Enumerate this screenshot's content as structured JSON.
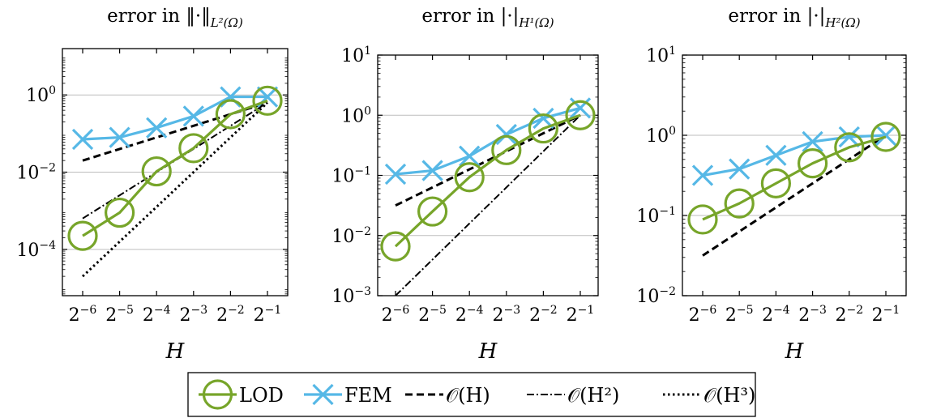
{
  "colors": {
    "lod": "#77a52a",
    "fem": "#56b8e6",
    "reference": "#000000",
    "grid": "#bdbdbd"
  },
  "legend": {
    "entries": [
      {
        "key": "lod",
        "label": "LOD",
        "style": "circle-line"
      },
      {
        "key": "fem",
        "label": "FEM",
        "style": "x-line"
      },
      {
        "key": "oh",
        "label": "𝒪(H)",
        "style": "dashed"
      },
      {
        "key": "oh2",
        "label": "𝒪(H²)",
        "style": "dashdot"
      },
      {
        "key": "oh3",
        "label": "𝒪(H³)",
        "style": "dotted"
      }
    ]
  },
  "chart_data": [
    {
      "type": "line",
      "title": "error in ‖·‖L²(Ω)",
      "xlabel": "H",
      "ylabel": "",
      "xscale": "log2",
      "yscale": "log10",
      "x": [
        -6,
        -5,
        -4,
        -3,
        -2,
        -1
      ],
      "x_tick_labels": [
        "2⁻⁶",
        "2⁻⁵",
        "2⁻⁴",
        "2⁻³",
        "2⁻²",
        "2⁻¹"
      ],
      "y_tick_labels": [
        "10⁰",
        "10⁻²",
        "10⁻⁴"
      ],
      "ylim_log10": [
        -5.2,
        1.2
      ],
      "y_ticks_log10": [
        0,
        -2,
        -4
      ],
      "grid": true,
      "series": [
        {
          "name": "LOD",
          "marker": "circle",
          "values_log10": [
            -3.65,
            -3.05,
            -1.98,
            -1.38,
            -0.5,
            -0.15
          ]
        },
        {
          "name": "FEM",
          "marker": "x",
          "values_log10": [
            -1.15,
            -1.1,
            -0.85,
            -0.55,
            -0.05,
            -0.05
          ]
        },
        {
          "name": "O(H)",
          "linestyle": "dashed",
          "values_log10": [
            -1.7,
            -1.4,
            -1.1,
            -0.8,
            -0.5,
            -0.2
          ]
        },
        {
          "name": "O(H^2)",
          "linestyle": "dashdot",
          "values_log10": [
            -3.2,
            -2.6,
            -2.0,
            -1.4,
            -0.8,
            -0.2
          ]
        },
        {
          "name": "O(H^3)",
          "linestyle": "dotted",
          "values_log10": [
            -4.7,
            -3.8,
            -2.9,
            -2.0,
            -1.1,
            -0.2
          ]
        }
      ]
    },
    {
      "type": "line",
      "title": "error in |·|H¹(Ω)",
      "xlabel": "H",
      "ylabel": "",
      "xscale": "log2",
      "yscale": "log10",
      "x": [
        -6,
        -5,
        -4,
        -3,
        -2,
        -1
      ],
      "x_tick_labels": [
        "2⁻⁶",
        "2⁻⁵",
        "2⁻⁴",
        "2⁻³",
        "2⁻²",
        "2⁻¹"
      ],
      "y_tick_labels": [
        "10¹",
        "10⁰",
        "10⁻¹",
        "10⁻²",
        "10⁻³"
      ],
      "ylim_log10": [
        -3,
        1
      ],
      "y_ticks_log10": [
        1,
        0,
        -1,
        -2,
        -3
      ],
      "grid": true,
      "series": [
        {
          "name": "LOD",
          "marker": "circle",
          "values_log10": [
            -2.18,
            -1.6,
            -1.03,
            -0.58,
            -0.22,
            0.0
          ]
        },
        {
          "name": "FEM",
          "marker": "x",
          "values_log10": [
            -0.98,
            -0.92,
            -0.68,
            -0.32,
            -0.05,
            0.12
          ]
        },
        {
          "name": "O(H)",
          "linestyle": "dashed",
          "values_log10": [
            -1.5,
            -1.2,
            -0.9,
            -0.6,
            -0.3,
            0.0
          ]
        },
        {
          "name": "O(H^2)",
          "linestyle": "dashdot",
          "values_log10": [
            -3.0,
            -2.4,
            -1.8,
            -1.2,
            -0.6,
            0.0
          ]
        }
      ]
    },
    {
      "type": "line",
      "title": "error in |·|H²(Ω)",
      "xlabel": "H",
      "ylabel": "",
      "xscale": "log2",
      "yscale": "log10",
      "x": [
        -6,
        -5,
        -4,
        -3,
        -2,
        -1
      ],
      "x_tick_labels": [
        "2⁻⁶",
        "2⁻⁵",
        "2⁻⁴",
        "2⁻³",
        "2⁻²",
        "2⁻¹"
      ],
      "y_tick_labels": [
        "10¹",
        "10⁰",
        "10⁻¹",
        "10⁻²"
      ],
      "ylim_log10": [
        -2,
        1
      ],
      "y_ticks_log10": [
        1,
        0,
        -1,
        -2
      ],
      "grid": true,
      "series": [
        {
          "name": "LOD",
          "marker": "circle",
          "values_log10": [
            -1.05,
            -0.85,
            -0.6,
            -0.35,
            -0.15,
            -0.02
          ]
        },
        {
          "name": "FEM",
          "marker": "x",
          "values_log10": [
            -0.5,
            -0.42,
            -0.25,
            -0.08,
            -0.02,
            0.0
          ]
        },
        {
          "name": "O(H)",
          "linestyle": "dashed",
          "values_log10": [
            -1.5,
            -1.2,
            -0.9,
            -0.6,
            -0.3,
            0.0
          ]
        }
      ]
    }
  ]
}
